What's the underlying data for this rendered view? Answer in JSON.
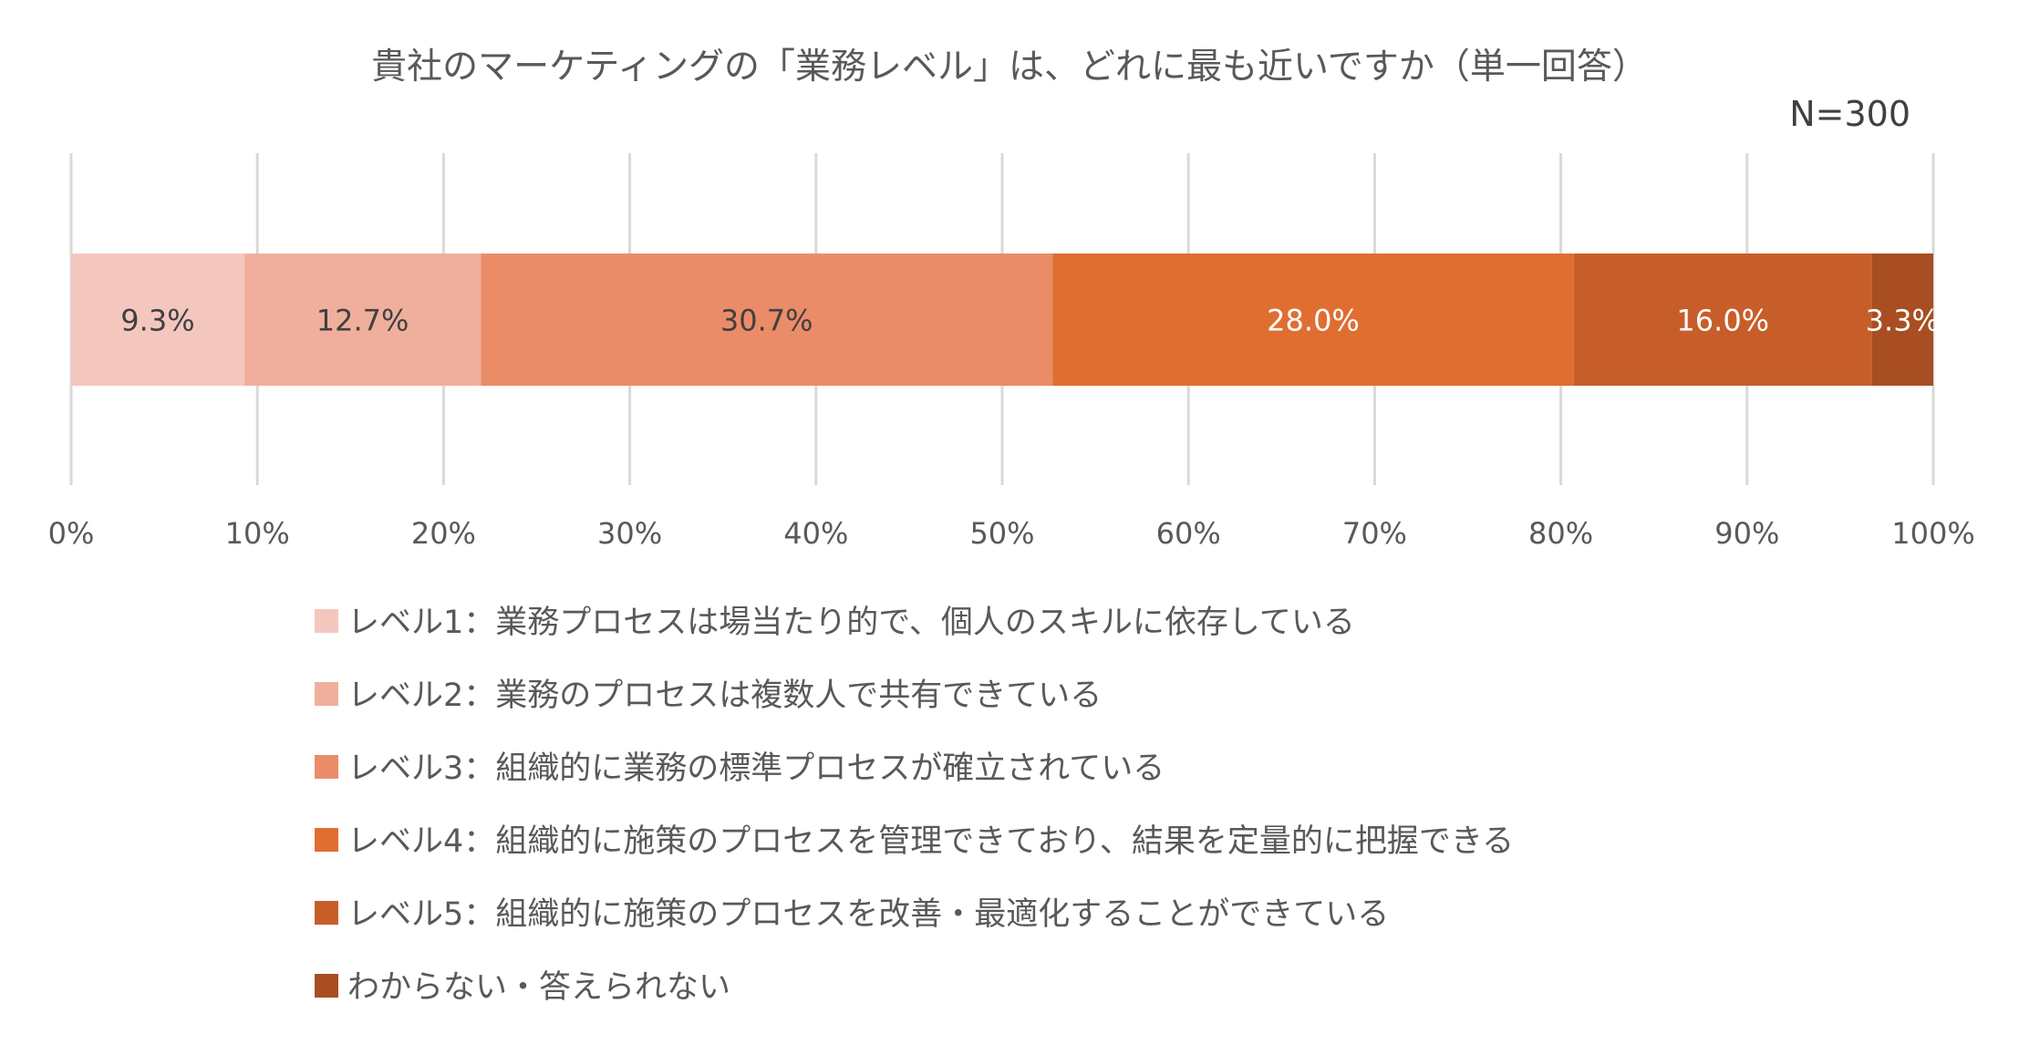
{
  "chart_data": {
    "type": "bar",
    "orientation": "horizontal",
    "stacked": true,
    "percent_stacked": true,
    "title": "貴社のマーケティングの「業務レベル」は、どれに最も近いですか（単一回答）",
    "sample_size_label": "N=300",
    "xlim": [
      0,
      100
    ],
    "x_ticks": [
      "0%",
      "10%",
      "20%",
      "30%",
      "40%",
      "50%",
      "60%",
      "70%",
      "80%",
      "90%",
      "100%"
    ],
    "grid": true,
    "legend_position": "bottom",
    "series": [
      {
        "name": "レベル1：業務プロセスは場当たり的で、個人のスキルに依存している",
        "value": 9.3,
        "label": "9.3%",
        "color": "#F4C7BE",
        "label_color": "#404040"
      },
      {
        "name": "レベル2：業務のプロセスは複数人で共有できている",
        "value": 12.7,
        "label": "12.7%",
        "color": "#F0AF9C",
        "label_color": "#404040"
      },
      {
        "name": "レベル3：組織的に業務の標準プロセスが確立されている",
        "value": 30.7,
        "label": "30.7%",
        "color": "#EB8C69",
        "label_color": "#404040"
      },
      {
        "name": "レベル4：組織的に施策のプロセスを管理できており、結果を定量的に把握できる",
        "value": 28.0,
        "label": "28.0%",
        "color": "#E06E31",
        "label_color": "#ffffff"
      },
      {
        "name": "レベル5：組織的に施策のプロセスを改善・最適化することができている",
        "value": 16.0,
        "label": "16.0%",
        "color": "#C75E2A",
        "label_color": "#ffffff"
      },
      {
        "name": "わからない・答えられない",
        "value": 3.3,
        "label": "3.3%",
        "color": "#A84E22",
        "label_color": "#ffffff"
      }
    ]
  }
}
